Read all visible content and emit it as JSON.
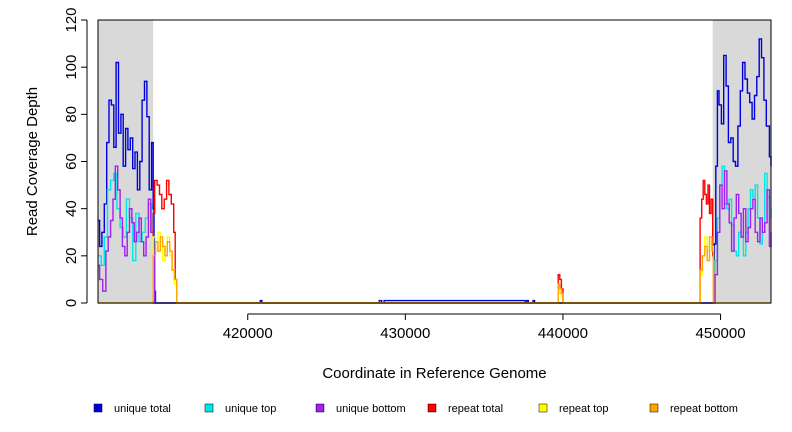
{
  "chart_data": {
    "type": "line",
    "title": "",
    "xlabel": "Coordinate in Reference Genome",
    "ylabel": "Read Coverage Depth",
    "xlim": [
      410500,
      453200
    ],
    "ylim": [
      0,
      120
    ],
    "xticks": [
      {
        "value": 420000,
        "label": "420000"
      },
      {
        "value": 430000,
        "label": "430000"
      },
      {
        "value": 440000,
        "label": "440000"
      },
      {
        "value": 450000,
        "label": "450000"
      }
    ],
    "yticks": [
      {
        "value": 0,
        "label": "0"
      },
      {
        "value": 20,
        "label": "20"
      },
      {
        "value": 40,
        "label": "40"
      },
      {
        "value": 60,
        "label": "60"
      },
      {
        "value": 80,
        "label": "80"
      },
      {
        "value": 100,
        "label": "100"
      },
      {
        "value": 120,
        "label": "120"
      }
    ],
    "shaded_regions": [
      {
        "x0": 410500,
        "x1": 414000,
        "color": "#d9d9d9"
      },
      {
        "x0": 449500,
        "x1": 453200,
        "color": "#d9d9d9"
      }
    ],
    "legend_position": "bottom",
    "series": [
      {
        "name": "unique total",
        "color": "#0000dd",
        "x": [
          410500,
          410600,
          410750,
          410900,
          411050,
          411200,
          411350,
          411500,
          411650,
          411800,
          411950,
          412100,
          412250,
          412400,
          412550,
          412700,
          412850,
          413000,
          413150,
          413300,
          413450,
          413600,
          413750,
          413900,
          414000,
          414050,
          414150,
          420700,
          420800,
          420900,
          428200,
          428350,
          428500,
          428650,
          437600,
          437700,
          437800,
          438000,
          438100,
          438200,
          449500,
          449600,
          449700,
          449800,
          449900,
          450050,
          450200,
          450350,
          450500,
          450650,
          450800,
          450950,
          451100,
          451250,
          451400,
          451550,
          451700,
          451850,
          452000,
          452150,
          452300,
          452450,
          452600,
          452750,
          452900,
          453100,
          453200
        ],
        "y": [
          35,
          24,
          30,
          42,
          68,
          86,
          84,
          66,
          102,
          72,
          80,
          58,
          74,
          65,
          70,
          57,
          64,
          48,
          60,
          86,
          94,
          79,
          48,
          68,
          40,
          5,
          0,
          0,
          1,
          0,
          0,
          1,
          0,
          1,
          0,
          1,
          0,
          0,
          1,
          0,
          0,
          25,
          58,
          90,
          84,
          76,
          105,
          92,
          68,
          70,
          60,
          58,
          75,
          90,
          102,
          95,
          89,
          85,
          78,
          88,
          96,
          112,
          104,
          86,
          75,
          62,
          58
        ]
      },
      {
        "name": "unique top",
        "color": "#00e5e5",
        "x": [
          410500,
          410700,
          410900,
          411100,
          411300,
          411500,
          411700,
          411900,
          412100,
          412300,
          412500,
          412700,
          412900,
          413100,
          413300,
          413500,
          413700,
          413900,
          414000,
          414100,
          449500,
          449650,
          449800,
          449950,
          450100,
          450250,
          450400,
          450550,
          450700,
          450850,
          451000,
          451150,
          451300,
          451450,
          451600,
          451750,
          451900,
          452050,
          452200,
          452350,
          452500,
          452650,
          452800,
          452950,
          453100,
          453200
        ],
        "y": [
          20,
          16,
          28,
          48,
          52,
          55,
          40,
          32,
          28,
          44,
          36,
          18,
          38,
          26,
          30,
          36,
          42,
          30,
          20,
          0,
          0,
          18,
          36,
          50,
          58,
          42,
          40,
          44,
          33,
          22,
          20,
          30,
          28,
          20,
          30,
          40,
          48,
          45,
          50,
          36,
          25,
          30,
          55,
          45,
          40,
          36
        ]
      },
      {
        "name": "unique bottom",
        "color": "#a020f0",
        "x": [
          410500,
          410600,
          410800,
          411000,
          411150,
          411300,
          411450,
          411600,
          411750,
          411900,
          412050,
          412200,
          412350,
          412500,
          412650,
          412800,
          412950,
          413100,
          413250,
          413400,
          413550,
          413700,
          413850,
          414000,
          414100,
          449500,
          449650,
          449800,
          449950,
          450100,
          450250,
          450400,
          450550,
          450700,
          450850,
          451000,
          451150,
          451300,
          451450,
          451600,
          451750,
          451900,
          452050,
          452200,
          452350,
          452500,
          452650,
          452800,
          452950,
          453100,
          453200
        ],
        "y": [
          16,
          10,
          5,
          22,
          28,
          35,
          44,
          58,
          48,
          36,
          24,
          20,
          30,
          40,
          34,
          26,
          30,
          36,
          26,
          20,
          28,
          44,
          30,
          22,
          0,
          0,
          12,
          30,
          50,
          40,
          56,
          42,
          34,
          22,
          36,
          46,
          38,
          28,
          40,
          26,
          32,
          40,
          44,
          30,
          26,
          36,
          30,
          34,
          48,
          24,
          30
        ]
      },
      {
        "name": "repeat total",
        "color": "#ff0000",
        "x": [
          413900,
          414000,
          414100,
          414250,
          414400,
          414550,
          414700,
          414850,
          415000,
          415150,
          415300,
          415400,
          415500,
          439600,
          439700,
          439800,
          439900,
          440000,
          448600,
          448700,
          448800,
          448900,
          449000,
          449100,
          449200,
          449300,
          449400,
          449500,
          449550
        ],
        "y": [
          0,
          38,
          52,
          50,
          46,
          40,
          44,
          52,
          46,
          42,
          30,
          10,
          0,
          0,
          12,
          10,
          6,
          0,
          0,
          36,
          44,
          52,
          46,
          42,
          50,
          38,
          44,
          20,
          0
        ]
      },
      {
        "name": "repeat top",
        "color": "#ffff00",
        "x": [
          413900,
          414000,
          414150,
          414300,
          414450,
          414600,
          414750,
          414900,
          415050,
          415200,
          415350,
          415500,
          439600,
          439700,
          439800,
          439900,
          440000,
          448600,
          448700,
          448850,
          449000,
          449150,
          449300,
          449450,
          449550
        ],
        "y": [
          0,
          28,
          22,
          30,
          26,
          18,
          24,
          28,
          20,
          14,
          8,
          0,
          0,
          6,
          4,
          2,
          0,
          0,
          12,
          20,
          28,
          22,
          26,
          24,
          0
        ]
      },
      {
        "name": "repeat bottom",
        "color": "#ffa500",
        "x": [
          410500,
          413900,
          414000,
          414150,
          414300,
          414450,
          414600,
          414750,
          414900,
          415050,
          415200,
          415350,
          415500,
          439600,
          439700,
          439800,
          439900,
          440000,
          448600,
          448700,
          448850,
          449000,
          449150,
          449300,
          449450,
          449550,
          453200
        ],
        "y": [
          0,
          0,
          20,
          26,
          22,
          28,
          24,
          20,
          26,
          22,
          14,
          10,
          0,
          0,
          8,
          6,
          4,
          0,
          0,
          14,
          20,
          24,
          18,
          28,
          22,
          0,
          0
        ]
      }
    ]
  }
}
